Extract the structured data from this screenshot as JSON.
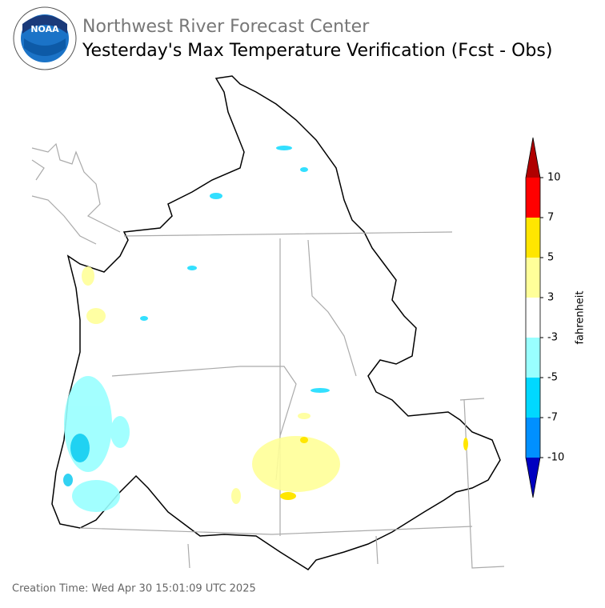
{
  "header": {
    "agency": "Northwest River Forecast Center",
    "title": "Yesterday's Max Temperature Verification (Fcst - Obs)",
    "logo_text": "NOAA"
  },
  "colorbar": {
    "label": "fahrenheit",
    "ticks": [
      -10,
      -7,
      -5,
      -3,
      3,
      5,
      7,
      10
    ],
    "colors": [
      "#0090ff",
      "#00d8ff",
      "#99ffff",
      "#ffffff",
      "#ffff99",
      "#ffe600",
      "#ff0000"
    ],
    "under_color": "#0000c0",
    "over_color": "#b00000"
  },
  "footer": {
    "creation_time": "Creation Time: Wed Apr 30 15:01:09 UTC 2025"
  }
}
